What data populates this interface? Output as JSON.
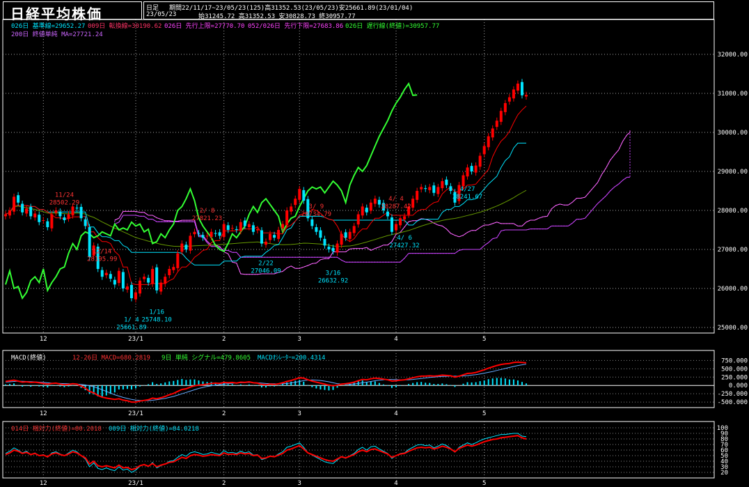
{
  "header": {
    "title": "日経平均株価",
    "timeframe": "日足",
    "period": "期間22/11/17~23/05/23(125)高31352.53(23/05/23)安25661.89(23/01/04)",
    "date": "23/05/23",
    "ohlc": "始31245.72 高31352.53 安30828.73 終30957.77"
  },
  "legend_main": {
    "base_line": "026日 基準線=29652.27",
    "conversion_line": "009日 転換線=30190.62",
    "leading_span_a": "026日 先行上限=27770.70",
    "leading_span_b": "052/026日 先行下限=27683.86",
    "lagging_span": "026日 遅行線(終値)=30957.77",
    "sma200": "200日 終値単純 MA=27721.24"
  },
  "legend_macd": {
    "name": "MACD(終値)",
    "macd": "12-26日 MACD=680.2819",
    "signal": "9日 単純 シグナル=479.8605",
    "osc": "MACDｵｼﾚｰﾀｰ=200.4314"
  },
  "legend_rsi": {
    "rsi14": "014日 相対力(終値)=80.2018",
    "rsi9": "009日 相対力(終値)=84.0218"
  },
  "colors": {
    "candle_up": "#ff0000",
    "candle_down": "#00e5ff",
    "base_line": "#00e5ff",
    "conversion_line": "#ff0000",
    "lagging_span": "#33ff33",
    "cloud": "#cc44ff",
    "sma200": "#669900",
    "macd": "#ff0000",
    "signal": "#66aaff",
    "rsi14": "#ff0000",
    "rsi9": "#00e5ff"
  },
  "chart_data": [
    {
      "type": "candlestick",
      "title": "日経平均株価",
      "y_ticks": [
        "32000.00",
        "31000.00",
        "30000.00",
        "29000.00",
        "28000.00",
        "27000.00",
        "26000.00",
        "25000.00"
      ],
      "ylim": [
        25000,
        32500
      ],
      "x_labels": [
        "12",
        "23/1",
        "2",
        "3",
        "4",
        "5"
      ],
      "annotations": [
        {
          "date": "11/24",
          "value": "28502.29"
        },
        {
          "date": "12/14",
          "value": "28195.99"
        },
        {
          "date": "1/ 4",
          "value": "25661.89"
        },
        {
          "date": "1/16",
          "value": "25748.10"
        },
        {
          "date": "2/ 8",
          "value": "27821.23"
        },
        {
          "date": "3/ 9",
          "value": "28734.79"
        },
        {
          "date": "3/16",
          "value": "26632.92"
        },
        {
          "date": "4/ 4",
          "value": "28287.42"
        },
        {
          "date": "4/ 6",
          "value": "27427.32"
        },
        {
          "date": "2/22",
          "value": "27046.09"
        },
        {
          "date": "4/27",
          "value": "28241.67"
        }
      ],
      "closes": [
        27900,
        28000,
        28350,
        28200,
        27950,
        28050,
        27850,
        27920,
        27700,
        27750,
        27570,
        27900,
        28000,
        27850,
        27750,
        27900,
        28100,
        28050,
        27800,
        27600,
        26800,
        27100,
        26500,
        26300,
        26400,
        26250,
        26100,
        26450,
        26000,
        26050,
        25750,
        25900,
        26200,
        26300,
        26150,
        26500,
        25950,
        26150,
        26300,
        26500,
        26550,
        26900,
        27150,
        27000,
        27350,
        27450,
        27400,
        27300,
        27350,
        27450,
        27400,
        27350,
        27650,
        27500,
        27550,
        27500,
        27700,
        27600,
        27650,
        27450,
        27520,
        27150,
        27200,
        27400,
        27300,
        27500,
        27650,
        28000,
        28100,
        28300,
        28550,
        28250,
        27800,
        27600,
        27450,
        27300,
        27100,
        27000,
        26950,
        27150,
        27400,
        27300,
        27450,
        27600,
        27900,
        28100,
        27950,
        28200,
        28300,
        28150,
        28000,
        27850,
        27450,
        27650,
        27800,
        27850,
        28100,
        28300,
        28500,
        28600,
        28550,
        28600,
        28450,
        28600,
        28750,
        28650,
        28500,
        28200,
        28650,
        28900,
        29100,
        29000,
        29150,
        29400,
        29650,
        29900,
        30100,
        30300,
        30550,
        30750,
        30900,
        31100,
        31250,
        30950,
        30960
      ]
    },
    {
      "type": "line",
      "title": "MACD(終値)",
      "y_ticks": [
        "750.000",
        "500.000",
        "250.000",
        "0.000",
        "-250.000",
        "-500.000"
      ],
      "ylim": [
        -560,
        800
      ],
      "series": [
        {
          "name": "12-26日 MACD",
          "values": [
            120,
            140,
            160,
            130,
            100,
            110,
            90,
            100,
            80,
            60,
            40,
            60,
            70,
            40,
            20,
            30,
            50,
            40,
            -20,
            -80,
            -180,
            -220,
            -300,
            -350,
            -380,
            -400,
            -420,
            -400,
            -440,
            -460,
            -500,
            -500,
            -470,
            -450,
            -430,
            -380,
            -400,
            -370,
            -330,
            -280,
            -240,
            -180,
            -120,
            -100,
            -50,
            -10,
            10,
            20,
            40,
            60,
            70,
            60,
            90,
            80,
            90,
            70,
            100,
            90,
            110,
            80,
            70,
            30,
            20,
            40,
            30,
            50,
            80,
            120,
            150,
            190,
            230,
            220,
            170,
            130,
            100,
            70,
            40,
            10,
            -10,
            10,
            40,
            50,
            70,
            100,
            140,
            180,
            170,
            200,
            220,
            210,
            190,
            170,
            130,
            140,
            160,
            170,
            200,
            230,
            260,
            280,
            280,
            290,
            280,
            290,
            310,
            300,
            290,
            250,
            280,
            320,
            360,
            370,
            390,
            430,
            470,
            520,
            560,
            600,
            630,
            650,
            660,
            690,
            700,
            690,
            680
          ]
        },
        {
          "name": "9日 単純 シグナル",
          "values": [
            100,
            110,
            120,
            125,
            125,
            120,
            115,
            110,
            100,
            90,
            80,
            70,
            65,
            60,
            55,
            50,
            45,
            40,
            30,
            15,
            -10,
            -40,
            -80,
            -130,
            -180,
            -230,
            -280,
            -320,
            -360,
            -390,
            -420,
            -440,
            -450,
            -455,
            -455,
            -445,
            -430,
            -410,
            -390,
            -360,
            -330,
            -290,
            -250,
            -210,
            -170,
            -130,
            -90,
            -60,
            -30,
            -10,
            10,
            25,
            40,
            55,
            65,
            75,
            80,
            85,
            90,
            85,
            80,
            70,
            60,
            55,
            50,
            45,
            50,
            60,
            75,
            95,
            120,
            145,
            160,
            165,
            160,
            150,
            130,
            110,
            80,
            55,
            40,
            35,
            35,
            45,
            60,
            80,
            100,
            120,
            140,
            160,
            170,
            180,
            180,
            175,
            170,
            168,
            170,
            180,
            195,
            210,
            225,
            240,
            250,
            260,
            270,
            275,
            280,
            280,
            280,
            285,
            295,
            310,
            325,
            345,
            370,
            395,
            420,
            450,
            480,
            510,
            540,
            570,
            600,
            620,
            640
          ]
        }
      ],
      "x_labels": [
        "12",
        "23/1",
        "2",
        "3",
        "4",
        "5"
      ]
    },
    {
      "type": "line",
      "title": "RSI",
      "y_ticks": [
        "100",
        "90",
        "80",
        "70",
        "60",
        "50",
        "40",
        "30",
        "20"
      ],
      "ylim": [
        15,
        100
      ],
      "series": [
        {
          "name": "014日 相対力(終値)",
          "values": [
            52,
            55,
            60,
            58,
            54,
            56,
            52,
            54,
            50,
            51,
            48,
            53,
            55,
            52,
            50,
            53,
            57,
            55,
            50,
            46,
            35,
            40,
            32,
            30,
            32,
            30,
            28,
            33,
            28,
            29,
            25,
            27,
            32,
            34,
            31,
            36,
            30,
            33,
            35,
            38,
            39,
            43,
            47,
            45,
            50,
            52,
            51,
            49,
            50,
            52,
            51,
            50,
            55,
            52,
            53,
            52,
            55,
            53,
            54,
            50,
            51,
            45,
            46,
            49,
            48,
            51,
            54,
            60,
            62,
            65,
            68,
            62,
            55,
            52,
            49,
            46,
            43,
            41,
            40,
            44,
            48,
            46,
            49,
            52,
            57,
            60,
            57,
            61,
            62,
            59,
            56,
            53,
            47,
            50,
            53,
            54,
            58,
            61,
            64,
            65,
            64,
            65,
            62,
            64,
            67,
            65,
            62,
            57,
            63,
            66,
            69,
            67,
            69,
            72,
            75,
            77,
            79,
            80,
            82,
            83,
            84,
            85,
            86,
            82,
            80
          ]
        },
        {
          "name": "009日 相対力(終値)",
          "values": [
            54,
            58,
            64,
            60,
            55,
            58,
            52,
            55,
            50,
            52,
            47,
            55,
            57,
            53,
            50,
            55,
            60,
            57,
            50,
            44,
            30,
            37,
            27,
            25,
            28,
            25,
            23,
            30,
            24,
            26,
            20,
            24,
            31,
            34,
            30,
            38,
            28,
            32,
            35,
            40,
            41,
            47,
            52,
            49,
            55,
            57,
            55,
            52,
            53,
            56,
            54,
            52,
            59,
            55,
            56,
            54,
            58,
            55,
            57,
            51,
            52,
            43,
            45,
            50,
            48,
            53,
            57,
            65,
            67,
            70,
            73,
            65,
            55,
            51,
            47,
            43,
            39,
            37,
            36,
            42,
            48,
            45,
            50,
            54,
            61,
            65,
            60,
            66,
            67,
            62,
            58,
            54,
            45,
            50,
            54,
            55,
            61,
            65,
            69,
            70,
            68,
            69,
            64,
            67,
            71,
            68,
            63,
            56,
            65,
            69,
            73,
            70,
            73,
            77,
            80,
            82,
            84,
            86,
            88,
            88,
            89,
            90,
            90,
            85,
            84
          ]
        }
      ],
      "x_labels": [
        "12",
        "23/1",
        "2",
        "3",
        "4",
        "5"
      ]
    }
  ]
}
